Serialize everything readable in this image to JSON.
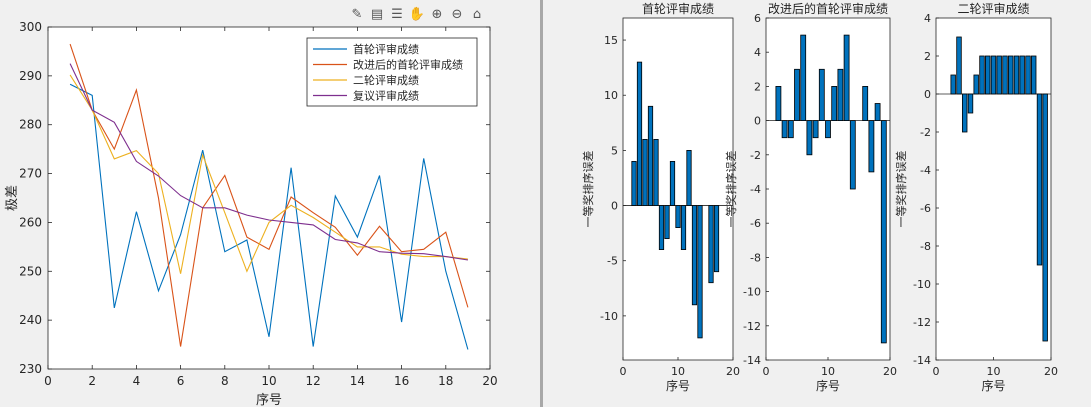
{
  "toolbar": {
    "icons": [
      "brush-icon",
      "insert-colorbar-icon",
      "insert-legend-icon",
      "pan-icon",
      "zoom-in-icon",
      "zoom-out-icon",
      "home-icon"
    ]
  },
  "chart_data": [
    {
      "type": "line",
      "title": "",
      "xlabel": "序号",
      "ylabel": "极差",
      "xlim": [
        0,
        20
      ],
      "ylim": [
        230,
        300
      ],
      "xticks": [
        0,
        2,
        4,
        6,
        8,
        10,
        12,
        14,
        16,
        18,
        20
      ],
      "yticks": [
        230,
        240,
        250,
        260,
        270,
        280,
        290,
        300
      ],
      "grid": false,
      "legend": "top-right",
      "x": [
        1,
        2,
        3,
        4,
        5,
        6,
        7,
        8,
        9,
        10,
        11,
        12,
        13,
        14,
        15,
        16,
        17,
        18,
        19
      ],
      "series": [
        {
          "name": "首轮评审成绩",
          "color": "#0072BD",
          "values": [
            288.3,
            286,
            242.5,
            262.2,
            246,
            257.5,
            274.8,
            254,
            256.4,
            236.6,
            271.2,
            234.6,
            265.4,
            257,
            269.6,
            239.6,
            273.1,
            250,
            234
          ]
        },
        {
          "name": "改进后的首轮评审成绩",
          "color": "#D95319",
          "values": [
            296.5,
            283,
            275,
            287.1,
            265,
            234.6,
            263,
            269.6,
            257,
            254.5,
            265.2,
            262,
            259,
            253.3,
            259.2,
            254,
            254.5,
            258,
            242.6
          ]
        },
        {
          "name": "二轮评审成绩",
          "color": "#EDB120",
          "values": [
            290.2,
            283,
            273,
            274.7,
            270,
            249.5,
            273.8,
            262,
            250,
            260,
            263.5,
            261,
            258,
            255,
            255,
            253.5,
            253,
            253,
            252.5
          ]
        },
        {
          "name": "复议评审成绩",
          "color": "#7E2F8E",
          "values": [
            292.5,
            283,
            280.5,
            272.5,
            269.5,
            265.5,
            263,
            263,
            261.5,
            260.5,
            260,
            259.5,
            256.5,
            255.8,
            254,
            253.7,
            253.6,
            253,
            252.3
          ]
        }
      ]
    },
    {
      "type": "bar",
      "title": "首轮评审成绩",
      "xlabel": "序号",
      "ylabel": "一等奖排序误差",
      "xlim": [
        0,
        20
      ],
      "ylim": [
        -14,
        17
      ],
      "xticks": [
        0,
        10,
        20
      ],
      "yticks": [
        -10,
        -5,
        0,
        5,
        10,
        15
      ],
      "x": [
        1,
        2,
        3,
        4,
        5,
        6,
        7,
        8,
        9,
        10,
        11,
        12,
        13,
        14,
        15,
        16,
        17,
        18,
        19
      ],
      "values": [
        0,
        4,
        13,
        6,
        9,
        6,
        -4,
        -3,
        4,
        -2,
        -4,
        5,
        -9,
        -12,
        0,
        -7,
        -6,
        0,
        0
      ]
    },
    {
      "type": "bar",
      "title": "改进后的首轮评审成绩",
      "xlabel": "序号",
      "ylabel": "一等奖排序误差",
      "xlim": [
        0,
        20
      ],
      "ylim": [
        -14,
        6
      ],
      "xticks": [
        0,
        10,
        20
      ],
      "yticks": [
        -14,
        -12,
        -10,
        -8,
        -6,
        -4,
        -2,
        0,
        2,
        4,
        6
      ],
      "x": [
        1,
        2,
        3,
        4,
        5,
        6,
        7,
        8,
        9,
        10,
        11,
        12,
        13,
        14,
        15,
        16,
        17,
        18,
        19
      ],
      "values": [
        0,
        2,
        -1,
        -1,
        3,
        5,
        -2,
        -1,
        3,
        -1,
        2,
        3,
        5,
        -4,
        0,
        2,
        -3,
        1,
        -13
      ]
    },
    {
      "type": "bar",
      "title": "二轮评审成绩",
      "xlabel": "序号",
      "ylabel": "一等奖排序误差",
      "xlim": [
        0,
        20
      ],
      "ylim": [
        -14,
        4
      ],
      "xticks": [
        0,
        10,
        20
      ],
      "yticks": [
        -14,
        -12,
        -10,
        -8,
        -6,
        -4,
        -2,
        0,
        2,
        4
      ],
      "x": [
        1,
        2,
        3,
        4,
        5,
        6,
        7,
        8,
        9,
        10,
        11,
        12,
        13,
        14,
        15,
        16,
        17,
        18,
        19
      ],
      "values": [
        0,
        0,
        1,
        3,
        -2,
        -1,
        1,
        2,
        2,
        2,
        2,
        2,
        2,
        2,
        2,
        2,
        2,
        -9,
        -13
      ]
    }
  ]
}
